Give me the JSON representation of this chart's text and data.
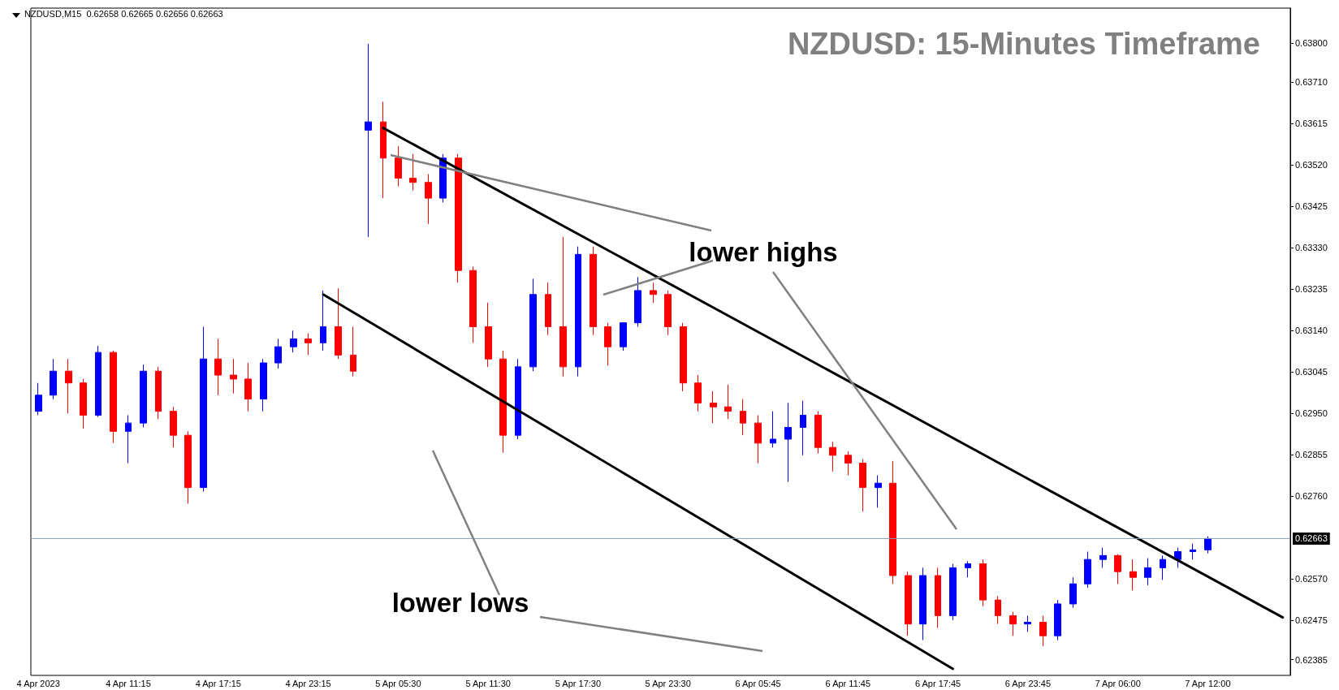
{
  "chart_data": {
    "type": "candlestick",
    "title": "NZDUSD: 15-Minutes Timeframe",
    "subtitle": "NZDUSD,M15  0.62658 0.62665 0.62656 0.62663",
    "categories": [
      "4 Apr 2023",
      null,
      null,
      null,
      null,
      null,
      "4 Apr 11:15",
      null,
      null,
      null,
      null,
      null,
      "4 Apr 17:15",
      null,
      null,
      null,
      null,
      null,
      "4 Apr 23:15",
      null,
      null,
      null,
      null,
      null,
      "5 Apr 05:30",
      null,
      null,
      null,
      null,
      null,
      "5 Apr 11:30",
      null,
      null,
      null,
      null,
      null,
      "5 Apr 17:30",
      null,
      null,
      null,
      null,
      null,
      "5 Apr 23:30",
      null,
      null,
      null,
      null,
      null,
      "6 Apr 05:45",
      null,
      null,
      null,
      null,
      null,
      "6 Apr 11:45",
      null,
      null,
      null,
      null,
      null,
      "6 Apr 17:45",
      null,
      null,
      null,
      null,
      null,
      "6 Apr 23:45",
      null,
      null,
      null,
      null,
      null,
      "7 Apr 06:00",
      null,
      null,
      null,
      null,
      null,
      "7 Apr 12:00",
      null,
      null,
      null,
      null,
      null
    ],
    "colors": [
      "#0000ff",
      "#0000ff",
      "#ff0000",
      "#ff0000",
      "#0000ff",
      "#ff0000",
      "#0000ff",
      "#0000ff",
      "#ff0000",
      "#ff0000",
      "#ff0000",
      "#0000ff",
      "#ff0000",
      "#ff0000",
      "#ff0000",
      "#0000ff",
      "#0000ff",
      "#0000ff",
      "#ff0000",
      "#0000ff",
      "#ff0000",
      "#ff0000",
      "#0000ff",
      "#ff0000",
      "#ff0000",
      "#ff0000",
      "#ff0000",
      "#0000ff",
      "#ff0000",
      "#ff0000",
      "#ff0000",
      "#ff0000",
      "#0000ff",
      "#0000ff",
      "#ff0000",
      "#ff0000",
      "#0000ff",
      "#ff0000",
      "#ff0000",
      "#0000ff",
      "#0000ff",
      "#ff0000",
      "#ff0000",
      "#ff0000",
      "#ff0000",
      "#ff0000",
      "#ff0000",
      "#ff0000",
      "#ff0000",
      "#0000ff",
      "#0000ff",
      "#0000ff",
      "#ff0000",
      "#ff0000",
      "#ff0000",
      "#ff0000",
      "#0000ff",
      "#ff0000",
      "#ff0000",
      "#0000ff",
      "#ff0000",
      "#0000ff",
      "#0000ff",
      "#ff0000",
      "#ff0000",
      "#ff0000",
      "#0000ff",
      "#ff0000",
      "#0000ff",
      "#0000ff",
      "#0000ff",
      "#0000ff",
      "#ff0000",
      "#ff0000",
      "#0000ff",
      "#0000ff",
      "#0000ff",
      "#0000ff",
      "#0000ff",
      null,
      null,
      null,
      null,
      null
    ],
    "ohlc": [
      [
        0.62955,
        0.6302,
        0.62946,
        0.62992
      ],
      [
        0.62992,
        0.63075,
        0.62983,
        0.63047
      ],
      [
        0.63047,
        0.63075,
        0.6295,
        0.6302
      ],
      [
        0.6302,
        0.63029,
        0.62915,
        0.62946
      ],
      [
        0.62946,
        0.63105,
        0.62942,
        0.6309
      ],
      [
        0.6309,
        0.63094,
        0.62882,
        0.62909
      ],
      [
        0.62909,
        0.62946,
        0.62836,
        0.62928
      ],
      [
        0.62928,
        0.63062,
        0.62918,
        0.63047
      ],
      [
        0.63047,
        0.63057,
        0.62937,
        0.62955
      ],
      [
        0.62955,
        0.62965,
        0.62872,
        0.629
      ],
      [
        0.629,
        0.62909,
        0.62743,
        0.6278
      ],
      [
        0.6278,
        0.63149,
        0.62771,
        0.63075
      ],
      [
        0.63075,
        0.63121,
        0.62992,
        0.63038
      ],
      [
        0.63038,
        0.63075,
        0.62996,
        0.63029
      ],
      [
        0.63029,
        0.63066,
        0.62955,
        0.62983
      ],
      [
        0.62983,
        0.63075,
        0.62955,
        0.63066
      ],
      [
        0.63066,
        0.63121,
        0.63053,
        0.63103
      ],
      [
        0.63103,
        0.6314,
        0.6309,
        0.63121
      ],
      [
        0.63121,
        0.63134,
        0.63084,
        0.63112
      ],
      [
        0.63112,
        0.63232,
        0.63094,
        0.63149
      ],
      [
        0.63149,
        0.63237,
        0.63075,
        0.63084
      ],
      [
        0.63084,
        0.63149,
        0.63035,
        0.63047
      ],
      [
        0.636,
        0.63798,
        0.63355,
        0.63619
      ],
      [
        0.63619,
        0.63665,
        0.63444,
        0.63536
      ],
      [
        0.63536,
        0.63563,
        0.63471,
        0.6349
      ],
      [
        0.6349,
        0.63545,
        0.63462,
        0.6348
      ],
      [
        0.6348,
        0.63499,
        0.63385,
        0.63444
      ],
      [
        0.63444,
        0.63545,
        0.63434,
        0.63536
      ],
      [
        0.63536,
        0.63545,
        0.6325,
        0.63278
      ],
      [
        0.63278,
        0.63287,
        0.63112,
        0.63149
      ],
      [
        0.63149,
        0.63204,
        0.63057,
        0.63075
      ],
      [
        0.63075,
        0.63094,
        0.6286,
        0.629
      ],
      [
        0.629,
        0.63075,
        0.62891,
        0.63057
      ],
      [
        0.63057,
        0.63259,
        0.63047,
        0.63223
      ],
      [
        0.63223,
        0.6325,
        0.6313,
        0.63149
      ],
      [
        0.63149,
        0.63355,
        0.63035,
        0.63057
      ],
      [
        0.63057,
        0.63333,
        0.63035,
        0.63315
      ],
      [
        0.63315,
        0.63333,
        0.6313,
        0.63149
      ],
      [
        0.63149,
        0.63158,
        0.6306,
        0.63103
      ],
      [
        0.63103,
        0.63158,
        0.63094,
        0.63158
      ],
      [
        0.63158,
        0.63263,
        0.63149,
        0.63232
      ],
      [
        0.63232,
        0.6325,
        0.63204,
        0.63223
      ],
      [
        0.63223,
        0.63232,
        0.6313,
        0.63149
      ],
      [
        0.63149,
        0.63158,
        0.63001,
        0.6302
      ],
      [
        0.6302,
        0.63038,
        0.62955,
        0.62974
      ],
      [
        0.62974,
        0.63001,
        0.62928,
        0.62965
      ],
      [
        0.62965,
        0.63016,
        0.62937,
        0.62955
      ],
      [
        0.62955,
        0.62983,
        0.629,
        0.62928
      ],
      [
        0.62928,
        0.62946,
        0.62836,
        0.62882
      ],
      [
        0.62882,
        0.62955,
        0.62872,
        0.62891
      ],
      [
        0.62891,
        0.62974,
        0.62793,
        0.62918
      ],
      [
        0.62918,
        0.62979,
        0.62854,
        0.62946
      ],
      [
        0.62946,
        0.62955,
        0.62858,
        0.62872
      ],
      [
        0.62872,
        0.62885,
        0.62817,
        0.62854
      ],
      [
        0.62854,
        0.62863,
        0.62808,
        0.62836
      ],
      [
        0.62836,
        0.62845,
        0.62725,
        0.6278
      ],
      [
        0.6278,
        0.62808,
        0.62734,
        0.6279
      ],
      [
        0.6279,
        0.62841,
        0.62559,
        0.62578
      ],
      [
        0.62578,
        0.62587,
        0.6244,
        0.62467
      ],
      [
        0.62467,
        0.62596,
        0.6243,
        0.62578
      ],
      [
        0.62578,
        0.62596,
        0.62458,
        0.62486
      ],
      [
        0.62486,
        0.62605,
        0.62476,
        0.62596
      ],
      [
        0.62596,
        0.62611,
        0.62574,
        0.62605
      ],
      [
        0.62605,
        0.62615,
        0.62508,
        0.62522
      ],
      [
        0.62522,
        0.62531,
        0.62467,
        0.62486
      ],
      [
        0.62486,
        0.62495,
        0.6244,
        0.62467
      ],
      [
        0.62467,
        0.62486,
        0.62449,
        0.62471
      ],
      [
        0.62471,
        0.62486,
        0.62416,
        0.6244
      ],
      [
        0.6244,
        0.62522,
        0.6243,
        0.62513
      ],
      [
        0.62513,
        0.62574,
        0.62504,
        0.62559
      ],
      [
        0.62559,
        0.62633,
        0.6255,
        0.62615
      ],
      [
        0.62615,
        0.62642,
        0.62596,
        0.62624
      ],
      [
        0.62624,
        0.62627,
        0.62559,
        0.62587
      ],
      [
        0.62587,
        0.62615,
        0.62544,
        0.62574
      ],
      [
        0.62574,
        0.62618,
        0.62556,
        0.62596
      ],
      [
        0.62596,
        0.62624,
        0.62568,
        0.62615
      ],
      [
        0.62615,
        0.62642,
        0.62596,
        0.62633
      ],
      [
        0.62633,
        0.62651,
        0.62615,
        0.62637
      ],
      [
        0.62637,
        0.62668,
        0.62629,
        0.62663
      ],
      null,
      null,
      null,
      null,
      null
    ],
    "series": [
      {
        "type": "line",
        "color": "#000000",
        "values": [
          null,
          null,
          null,
          null,
          null,
          null,
          null,
          null,
          null,
          null,
          null,
          null,
          null,
          null,
          null,
          null,
          null,
          null,
          null,
          null,
          null,
          null,
          null,
          0.63605,
          null,
          null,
          null,
          null,
          null,
          null,
          null,
          null,
          null,
          null,
          null,
          null,
          null,
          null,
          null,
          null,
          null,
          null,
          null,
          null,
          null,
          null,
          null,
          null,
          null,
          null,
          null,
          null,
          null,
          null,
          null,
          null,
          null,
          null,
          null,
          null,
          null,
          null,
          null,
          null,
          null,
          null,
          null,
          null,
          null,
          null,
          null,
          null,
          null,
          null,
          null,
          null,
          null,
          null,
          null,
          null,
          null,
          null,
          null,
          0.62482
        ]
      },
      {
        "type": "line",
        "color": "#000000",
        "values": [
          null,
          null,
          null,
          null,
          null,
          null,
          null,
          null,
          null,
          null,
          null,
          null,
          null,
          null,
          null,
          null,
          null,
          null,
          null,
          0.63223,
          null,
          null,
          null,
          null,
          null,
          null,
          null,
          null,
          null,
          null,
          null,
          null,
          null,
          null,
          null,
          null,
          null,
          null,
          null,
          null,
          null,
          null,
          null,
          null,
          null,
          null,
          null,
          null,
          null,
          null,
          null,
          null,
          null,
          null,
          null,
          null,
          null,
          null,
          null,
          null,
          null,
          0.62364,
          null,
          null,
          null,
          null,
          null,
          null,
          null,
          null,
          null,
          null,
          null,
          null,
          null,
          null,
          null,
          null,
          null,
          null,
          null,
          null,
          null,
          null
        ]
      }
    ],
    "ylim": [
      0.62349,
      0.6388
    ],
    "yticks": [
      {
        "value": 0.638,
        "label": "0.63800"
      },
      {
        "value": 0.6371,
        "label": "0.63710"
      },
      {
        "value": 0.63615,
        "label": "0.63615"
      },
      {
        "value": 0.6352,
        "label": "0.63520"
      },
      {
        "value": 0.63425,
        "label": "0.63425"
      },
      {
        "value": 0.6333,
        "label": "0.63330"
      },
      {
        "value": 0.63235,
        "label": "0.63235"
      },
      {
        "value": 0.6314,
        "label": "0.63140"
      },
      {
        "value": 0.63045,
        "label": "0.63045"
      },
      {
        "value": 0.6295,
        "label": "0.62950"
      },
      {
        "value": 0.62855,
        "label": "0.62855"
      },
      {
        "value": 0.6276,
        "label": "0.62760"
      },
      {
        "value": 0.6257,
        "label": "0.62570"
      },
      {
        "value": 0.62475,
        "label": "0.62475"
      },
      {
        "value": 0.62385,
        "label": "0.62385"
      }
    ],
    "ref_lines": [
      {
        "axis": "y",
        "value": 0.62663,
        "label": "0.62663",
        "color": "#8a9bb0"
      }
    ],
    "annotations": [
      "lower highs",
      "lower lows"
    ]
  }
}
